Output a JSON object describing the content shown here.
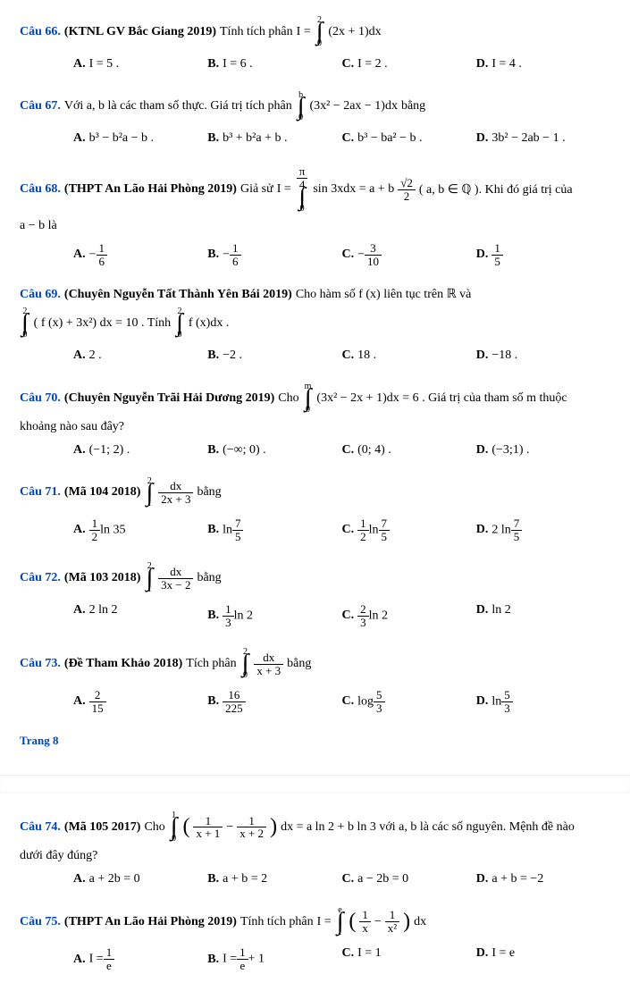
{
  "q66": {
    "num": "Câu 66.",
    "src": "(KTNL GV Bắc Giang 2019)",
    "pre": "Tính tích phân",
    "int_upper": "2",
    "int_lower": "0",
    "integrand": "(2x + 1)dx",
    "lhs": "I =",
    "A": "I = 5 .",
    "B": "I = 6 .",
    "C": "I = 2 .",
    "D": "I = 4 ."
  },
  "q67": {
    "num": "Câu 67.",
    "pre": "Với  a, b  là các tham số thực. Giá trị tích phân",
    "int_upper": "b",
    "int_lower": "0",
    "integrand": "(3x² − 2ax − 1)dx",
    "post": "bằng",
    "A": "b³ − b²a − b .",
    "B": "b³ + b²a + b .",
    "C": "b³ − ba² − b .",
    "D": "3b² − 2ab − 1 ."
  },
  "q68": {
    "num": "Câu 68.",
    "src": "(THPT An Lão Hải Phòng 2019)",
    "pre": "Giả sử",
    "lhs": "I =",
    "int_upper": "π",
    "int_upper2": "4",
    "int_lower": "0",
    "integrand": "sin 3xdx = a + b",
    "root": "√2",
    "root_den": "2",
    "post": "( a, b ∈ ℚ ). Khi đó giá trị của",
    "line2": "a − b  là",
    "A_pre": "−",
    "A_num": "1",
    "A_den": "6",
    "B_pre": "−",
    "B_num": "1",
    "B_den": "6",
    "C_pre": "−",
    "C_num": "3",
    "C_den": "10",
    "D_num": "1",
    "D_den": "5"
  },
  "q69": {
    "num": "Câu 69.",
    "src": "(Chuyên Nguyễn Tất Thành Yên Bái 2019)",
    "pre": "Cho hàm số  f (x)  liên tục trên  ℝ  và",
    "int1_upper": "2",
    "int1_lower": "0",
    "integrand1": "( f (x) + 3x²) dx = 10 . Tính",
    "int2_upper": "2",
    "int2_lower": "0",
    "integrand2": "f (x)dx .",
    "A": "2 .",
    "B": "−2 .",
    "C": "18 .",
    "D": "−18 ."
  },
  "q70": {
    "num": "Câu 70.",
    "src": "(Chuyên Nguyễn Trãi Hải Dương 2019)",
    "pre": "Cho",
    "int_upper": "m",
    "int_lower": "0",
    "integrand": "(3x² − 2x + 1)dx = 6 .  Giá trị của tham số m thuộc",
    "line2": "khoảng nào sau đây?",
    "A": "(−1; 2) .",
    "B": "(−∞; 0) .",
    "C": "(0; 4) .",
    "D": "(−3;1) ."
  },
  "q71": {
    "num": "Câu 71.",
    "src": "(Mã 104 2018)",
    "int_upper": "2",
    "int_lower": "1",
    "i_num": "dx",
    "i_den": "2x + 3",
    "post": "bằng",
    "A_num": "1",
    "A_den": "2",
    "A_post": "ln 35",
    "B_pre": "ln",
    "B_num": "7",
    "B_den": "5",
    "C_num1": "1",
    "C_den1": "2",
    "C_mid": "ln",
    "C_num2": "7",
    "C_den2": "5",
    "D_pre": "2 ln",
    "D_num": "7",
    "D_den": "5"
  },
  "q72": {
    "num": "Câu 72.",
    "src": "(Mã 103 2018)",
    "int_upper": "2",
    "int_lower": "1",
    "i_num": "dx",
    "i_den": "3x − 2",
    "post": "bằng",
    "A": "2 ln 2",
    "B_num": "1",
    "B_den": "3",
    "B_post": "ln 2",
    "C_num": "2",
    "C_den": "3",
    "C_post": "ln 2",
    "D": "ln 2"
  },
  "q73": {
    "num": "Câu 73.",
    "src": "(Đề Tham Khảo 2018)",
    "pre": "Tích phân",
    "int_upper": "2",
    "int_lower": "0",
    "i_num": "dx",
    "i_den": "x + 3",
    "post": "bằng",
    "A_num": "2",
    "A_den": "15",
    "B_num": "16",
    "B_den": "225",
    "C_pre": "log",
    "C_num": "5",
    "C_den": "3",
    "D_pre": "ln",
    "D_num": "5",
    "D_den": "3"
  },
  "page": "Trang 8",
  "q74": {
    "num": "Câu 74.",
    "src": "(Mã 105 2017)",
    "pre": "Cho",
    "int_upper": "1",
    "int_lower": "0",
    "p1_num": "1",
    "p1_den": "x + 1",
    "minus": "−",
    "p2_num": "1",
    "p2_den": "x + 2",
    "post": "dx = a ln 2 + b ln 3  với  a, b  là các số nguyên. Mệnh đề nào",
    "line2": "dưới đây đúng?",
    "A": "a + 2b = 0",
    "B": "a + b = 2",
    "C": "a − 2b = 0",
    "D": "a + b = −2"
  },
  "q75": {
    "num": "Câu 75.",
    "src": "(THPT An Lão Hải Phòng 2019)",
    "pre": "Tính tích phân",
    "lhs": "I =",
    "int_upper": "e",
    "int_lower": "1",
    "p1_num": "1",
    "p1_den": "x",
    "minus": "−",
    "p2_num": "1",
    "p2_den": "x²",
    "post": "dx",
    "A_pre": "I =",
    "A_num": "1",
    "A_den": "e",
    "B_pre": "I =",
    "B_num": "1",
    "B_den": "e",
    "B_post": "+ 1",
    "C": "I = 1",
    "D": "I = e"
  }
}
